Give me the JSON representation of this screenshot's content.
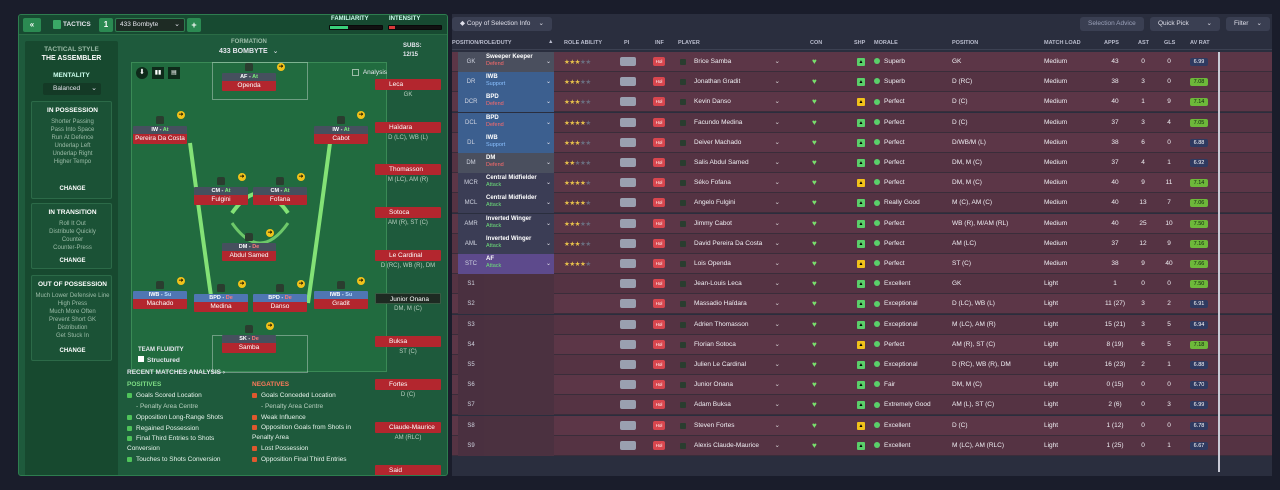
{
  "header": {
    "back_icon": "double-chevron-left-icon",
    "tactics_label": "TACTICS",
    "tactic_slot": "1",
    "tactic_name": "433 Bombyte",
    "familiarity_label": "FAMILIARITY",
    "intensity_label": "INTENSITY"
  },
  "sidebar": {
    "style_label": "TACTICAL STYLE",
    "style_name": "THE ASSEMBLER",
    "mentality_label": "MENTALITY",
    "mentality_value": "Balanced",
    "in_possession": {
      "title": "IN POSSESSION",
      "items": [
        "Shorter Passing",
        "Pass Into Space",
        "Run At Defence",
        "Underlap Left",
        "Underlap Right",
        "Higher Tempo"
      ],
      "change": "CHANGE"
    },
    "in_transition": {
      "title": "IN TRANSITION",
      "items": [
        "Roll It Out",
        "Distribute Quickly",
        "Counter",
        "Counter-Press"
      ],
      "change": "CHANGE"
    },
    "out_of_possession": {
      "title": "OUT OF POSSESSION",
      "items": [
        "Much Lower Defensive Line",
        "High Press",
        "Much More Often",
        "Prevent Short GK",
        "Distribution",
        "Get Stuck In"
      ],
      "change": "CHANGE"
    }
  },
  "pitch": {
    "formation_label": "FORMATION",
    "formation_name": "433 BOMBYTE",
    "analysis_label": "Analysis",
    "team_fluidity_label": "TEAM FLUIDITY",
    "team_fluidity_value": "Structured",
    "players": [
      {
        "role": "AF",
        "duty": "At",
        "name": "Openda"
      },
      {
        "role": "IW",
        "duty": "At",
        "name": "Pereira Da Costa"
      },
      {
        "role": "IW",
        "duty": "At",
        "name": "Cabot"
      },
      {
        "role": "CM",
        "duty": "At",
        "name": "Fulgini"
      },
      {
        "role": "CM",
        "duty": "At",
        "name": "Fofana"
      },
      {
        "role": "DM",
        "duty": "De",
        "name": "Abdul Samed"
      },
      {
        "role": "IWB",
        "duty": "Su",
        "name": "Machado"
      },
      {
        "role": "BPD",
        "duty": "De",
        "name": "Medina"
      },
      {
        "role": "BPD",
        "duty": "De",
        "name": "Danso"
      },
      {
        "role": "IWB",
        "duty": "Su",
        "name": "Gradit"
      },
      {
        "role": "SK",
        "duty": "De",
        "name": "Samba"
      }
    ]
  },
  "subs": {
    "label": "SUBS:",
    "count": "12/15",
    "items": [
      {
        "name": "Leca",
        "pos": "GK"
      },
      {
        "name": "Haïdara",
        "pos": "D (LC), WB (L)"
      },
      {
        "name": "Thomasson",
        "pos": "M (LC), AM (R)"
      },
      {
        "name": "Sotoca",
        "pos": "AM (R), ST (C)"
      },
      {
        "name": "Le Cardinal",
        "pos": "D (RC), WB (R), DM"
      },
      {
        "name": "Junior Onana",
        "pos": "DM, M (C)"
      },
      {
        "name": "Buksa",
        "pos": "ST (C)"
      },
      {
        "name": "Fortes",
        "pos": "D (C)"
      },
      {
        "name": "Claude-Maurice",
        "pos": "AM (RLC)"
      },
      {
        "name": "Said",
        "pos": ""
      }
    ]
  },
  "analysis": {
    "title": "RECENT MATCHES ANALYSIS",
    "positives_label": "POSITIVES",
    "negatives_label": "NEGATIVES",
    "positives": [
      "Goals Scored Location",
      "- Penalty Area Centre",
      "Opposition Long-Range Shots",
      "Regained Possession",
      "Final Third Entries to Shots Conversion",
      "Touches to Shots Conversion"
    ],
    "negatives": [
      "Goals Conceded Location",
      "- Penalty Area Centre",
      "Weak Influence",
      "Opposition Goals from Shots in Penalty Area",
      "Lost Possession",
      "Opposition Final Third Entries"
    ]
  },
  "toolbar": {
    "view_label": "Copy of Selection Info",
    "selection_advice": "Selection Advice",
    "quick_pick": "Quick Pick",
    "filter": "Filter"
  },
  "columns": [
    "POSITION/ROLE/DUTY",
    "ROLE ABILITY",
    "PI",
    "INF",
    "PLAYER",
    "CON",
    "SHP",
    "MORALE",
    "POSITION",
    "MATCH LOAD",
    "APPS",
    "AST",
    "GLS",
    "AV RAT"
  ],
  "rows": [
    {
      "pos": "GK",
      "role": "Sweeper Keeper",
      "duty": "Defend",
      "stars": 3,
      "name": "Brice Samba",
      "morale": "Superb",
      "position": "GK",
      "load": "Medium",
      "apps": "43",
      "ast": "0",
      "gls": "0",
      "rat": "6.99"
    },
    {
      "pos": "DR",
      "role": "IWB",
      "duty": "Support",
      "stars": 2.5,
      "name": "Jonathan Gradit",
      "morale": "Superb",
      "position": "D (RC)",
      "load": "Medium",
      "apps": "38",
      "ast": "3",
      "gls": "0",
      "rat": "7.08"
    },
    {
      "pos": "DCR",
      "role": "BPD",
      "duty": "Defend",
      "stars": 3,
      "name": "Kevin Danso",
      "morale": "Perfect",
      "position": "D (C)",
      "load": "Medium",
      "apps": "40",
      "ast": "1",
      "gls": "9",
      "rat": "7.14"
    },
    {
      "pos": "DCL",
      "role": "BPD",
      "duty": "Defend",
      "stars": 3.5,
      "name": "Facundo Medina",
      "morale": "Perfect",
      "position": "D (C)",
      "load": "Medium",
      "apps": "37",
      "ast": "3",
      "gls": "4",
      "rat": "7.05"
    },
    {
      "pos": "DL",
      "role": "IWB",
      "duty": "Support",
      "stars": 2.5,
      "name": "Deiver Machado",
      "morale": "Perfect",
      "position": "D/WB/M (L)",
      "load": "Medium",
      "apps": "38",
      "ast": "6",
      "gls": "0",
      "rat": "6.88"
    },
    {
      "pos": "DM",
      "role": "DM",
      "duty": "Defend",
      "stars": 2,
      "name": "Salis Abdul Samed",
      "morale": "Perfect",
      "position": "DM, M (C)",
      "load": "Medium",
      "apps": "37",
      "ast": "4",
      "gls": "1",
      "rat": "6.92"
    },
    {
      "pos": "MCR",
      "role": "Central Midfielder",
      "duty": "Attack",
      "stars": 4,
      "name": "Séko Fofana",
      "morale": "Perfect",
      "position": "DM, M (C)",
      "load": "Medium",
      "apps": "40",
      "ast": "9",
      "gls": "11",
      "rat": "7.14"
    },
    {
      "pos": "MCL",
      "role": "Central Midfielder",
      "duty": "Attack",
      "stars": 3.5,
      "name": "Angelo Fulgini",
      "morale": "Really Good",
      "position": "M (C), AM (C)",
      "load": "Medium",
      "apps": "40",
      "ast": "13",
      "gls": "7",
      "rat": "7.06"
    },
    {
      "pos": "AMR",
      "role": "Inverted Winger",
      "duty": "Attack",
      "stars": 2.5,
      "name": "Jimmy Cabot",
      "morale": "Perfect",
      "position": "WB (R), M/AM (RL)",
      "load": "Medium",
      "apps": "40",
      "ast": "25",
      "gls": "10",
      "rat": "7.50"
    },
    {
      "pos": "AML",
      "role": "Inverted Winger",
      "duty": "Attack",
      "stars": 3,
      "name": "David Pereira Da Costa",
      "morale": "Perfect",
      "position": "AM (LC)",
      "load": "Medium",
      "apps": "37",
      "ast": "12",
      "gls": "9",
      "rat": "7.16"
    },
    {
      "pos": "STC",
      "role": "AF",
      "duty": "Attack",
      "stars": 4,
      "name": "Lois Openda",
      "morale": "Perfect",
      "position": "ST (C)",
      "load": "Medium",
      "apps": "38",
      "ast": "9",
      "gls": "40",
      "rat": "7.66"
    },
    {
      "pos": "S1",
      "name": "Jean-Louis Leca",
      "morale": "Excellent",
      "position": "GK",
      "load": "Light",
      "apps": "1",
      "ast": "0",
      "gls": "0",
      "rat": "7.50"
    },
    {
      "pos": "S2",
      "name": "Massadio Haïdara",
      "morale": "Exceptional",
      "position": "D (LC), WB (L)",
      "load": "Light",
      "apps": "11 (27)",
      "ast": "3",
      "gls": "2",
      "rat": "6.91"
    },
    {
      "pos": "S3",
      "name": "Adrien Thomasson",
      "morale": "Exceptional",
      "position": "M (LC), AM (R)",
      "load": "Light",
      "apps": "15 (21)",
      "ast": "3",
      "gls": "5",
      "rat": "6.94"
    },
    {
      "pos": "S4",
      "name": "Florian Sotoca",
      "morale": "Perfect",
      "position": "AM (R), ST (C)",
      "load": "Light",
      "apps": "8 (19)",
      "ast": "6",
      "gls": "5",
      "rat": "7.18"
    },
    {
      "pos": "S5",
      "name": "Julien Le Cardinal",
      "morale": "Exceptional",
      "position": "D (RC), WB (R), DM",
      "load": "Light",
      "apps": "16 (23)",
      "ast": "2",
      "gls": "1",
      "rat": "6.88"
    },
    {
      "pos": "S6",
      "name": "Junior Onana",
      "morale": "Fair",
      "position": "DM, M (C)",
      "load": "Light",
      "apps": "0 (15)",
      "ast": "0",
      "gls": "0",
      "rat": "6.70"
    },
    {
      "pos": "S7",
      "name": "Adam Buksa",
      "morale": "Extremely Good",
      "position": "AM (L), ST (C)",
      "load": "Light",
      "apps": "2 (6)",
      "ast": "0",
      "gls": "3",
      "rat": "6.99"
    },
    {
      "pos": "S8",
      "name": "Steven Fortes",
      "morale": "Excellent",
      "position": "D (C)",
      "load": "Light",
      "apps": "1 (12)",
      "ast": "0",
      "gls": "0",
      "rat": "6.78"
    },
    {
      "pos": "S9",
      "name": "Alexis Claude-Maurice",
      "morale": "Excellent",
      "position": "M (LC), AM (RLC)",
      "load": "Light",
      "apps": "1 (25)",
      "ast": "0",
      "gls": "1",
      "rat": "6.67"
    }
  ]
}
